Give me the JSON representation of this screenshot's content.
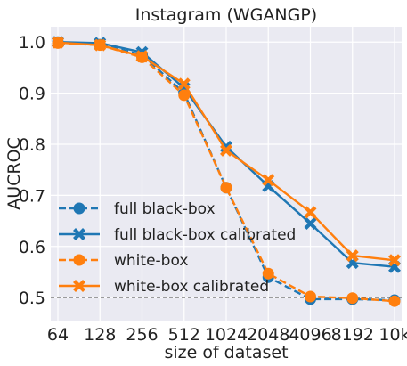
{
  "chart_data": {
    "type": "line",
    "title": "Instagram (WGANGP)",
    "xlabel": "size of dataset",
    "ylabel": "AUCROC",
    "categories": [
      "64",
      "128",
      "256",
      "512",
      "1024",
      "2048",
      "4096",
      "8192",
      "10k"
    ],
    "ylim": [
      0.455,
      1.03
    ],
    "yticks": [
      "0.5",
      "0.6",
      "0.7",
      "0.8",
      "0.9",
      "1.0"
    ],
    "grid": true,
    "reference_line": 0.5,
    "legend_position": "lower-left",
    "series": [
      {
        "name": "full black-box",
        "values": [
          1.0,
          0.995,
          0.975,
          0.9,
          0.715,
          0.54,
          0.497,
          0.497,
          0.495
        ],
        "color": "#1f77b4",
        "linestyle": "dashed",
        "marker": "circle"
      },
      {
        "name": "full black-box calibrated",
        "values": [
          1.0,
          0.998,
          0.98,
          0.91,
          0.795,
          0.718,
          0.645,
          0.568,
          0.56
        ],
        "color": "#1f77b4",
        "linestyle": "solid",
        "marker": "x"
      },
      {
        "name": "white-box",
        "values": [
          0.998,
          0.994,
          0.97,
          0.896,
          0.715,
          0.547,
          0.502,
          0.499,
          0.493
        ],
        "color": "#ff7f0e",
        "linestyle": "dashed",
        "marker": "circle"
      },
      {
        "name": "white-box calibrated",
        "values": [
          0.999,
          0.994,
          0.972,
          0.918,
          0.788,
          0.73,
          0.667,
          0.582,
          0.573
        ],
        "color": "#ff7f0e",
        "linestyle": "solid",
        "marker": "x"
      }
    ]
  }
}
